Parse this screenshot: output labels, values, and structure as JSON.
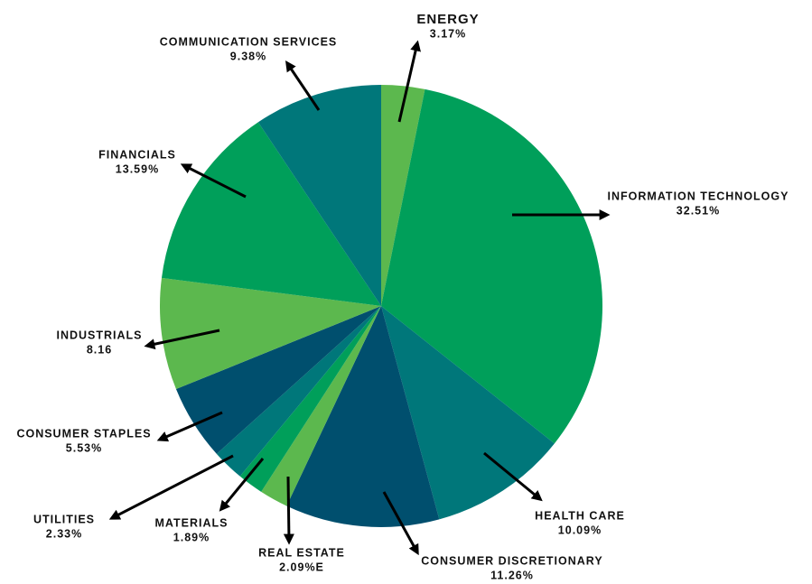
{
  "chart_data": {
    "type": "pie",
    "categories": [
      "ENERGY",
      "INFORMATION TECHNOLOGY",
      "HEALTH CARE",
      "CONSUMER DISCRETIONARY",
      "REAL ESTATE",
      "MATERIALS",
      "UTILITIES",
      "CONSUMER STAPLES",
      "INDUSTRIALS",
      "FINANCIALS",
      "COMMUNICATION SERVICES"
    ],
    "values": [
      3.17,
      32.51,
      10.09,
      11.26,
      2.09,
      1.89,
      2.33,
      5.53,
      8.16,
      13.59,
      9.38
    ],
    "value_labels": [
      "3.17%",
      "32.51%",
      "10.09%",
      "11.26%",
      "2.09%E",
      "1.89%",
      "2.33%",
      "5.53%",
      "8.16",
      "13.59%",
      "9.38%"
    ],
    "colors": [
      "#5cb84e",
      "#009f5a",
      "#00777a",
      "#004f6e",
      "#5cb84e",
      "#009f5a",
      "#00777a",
      "#004f6e",
      "#5cb84e",
      "#009f5a",
      "#00777a"
    ]
  }
}
